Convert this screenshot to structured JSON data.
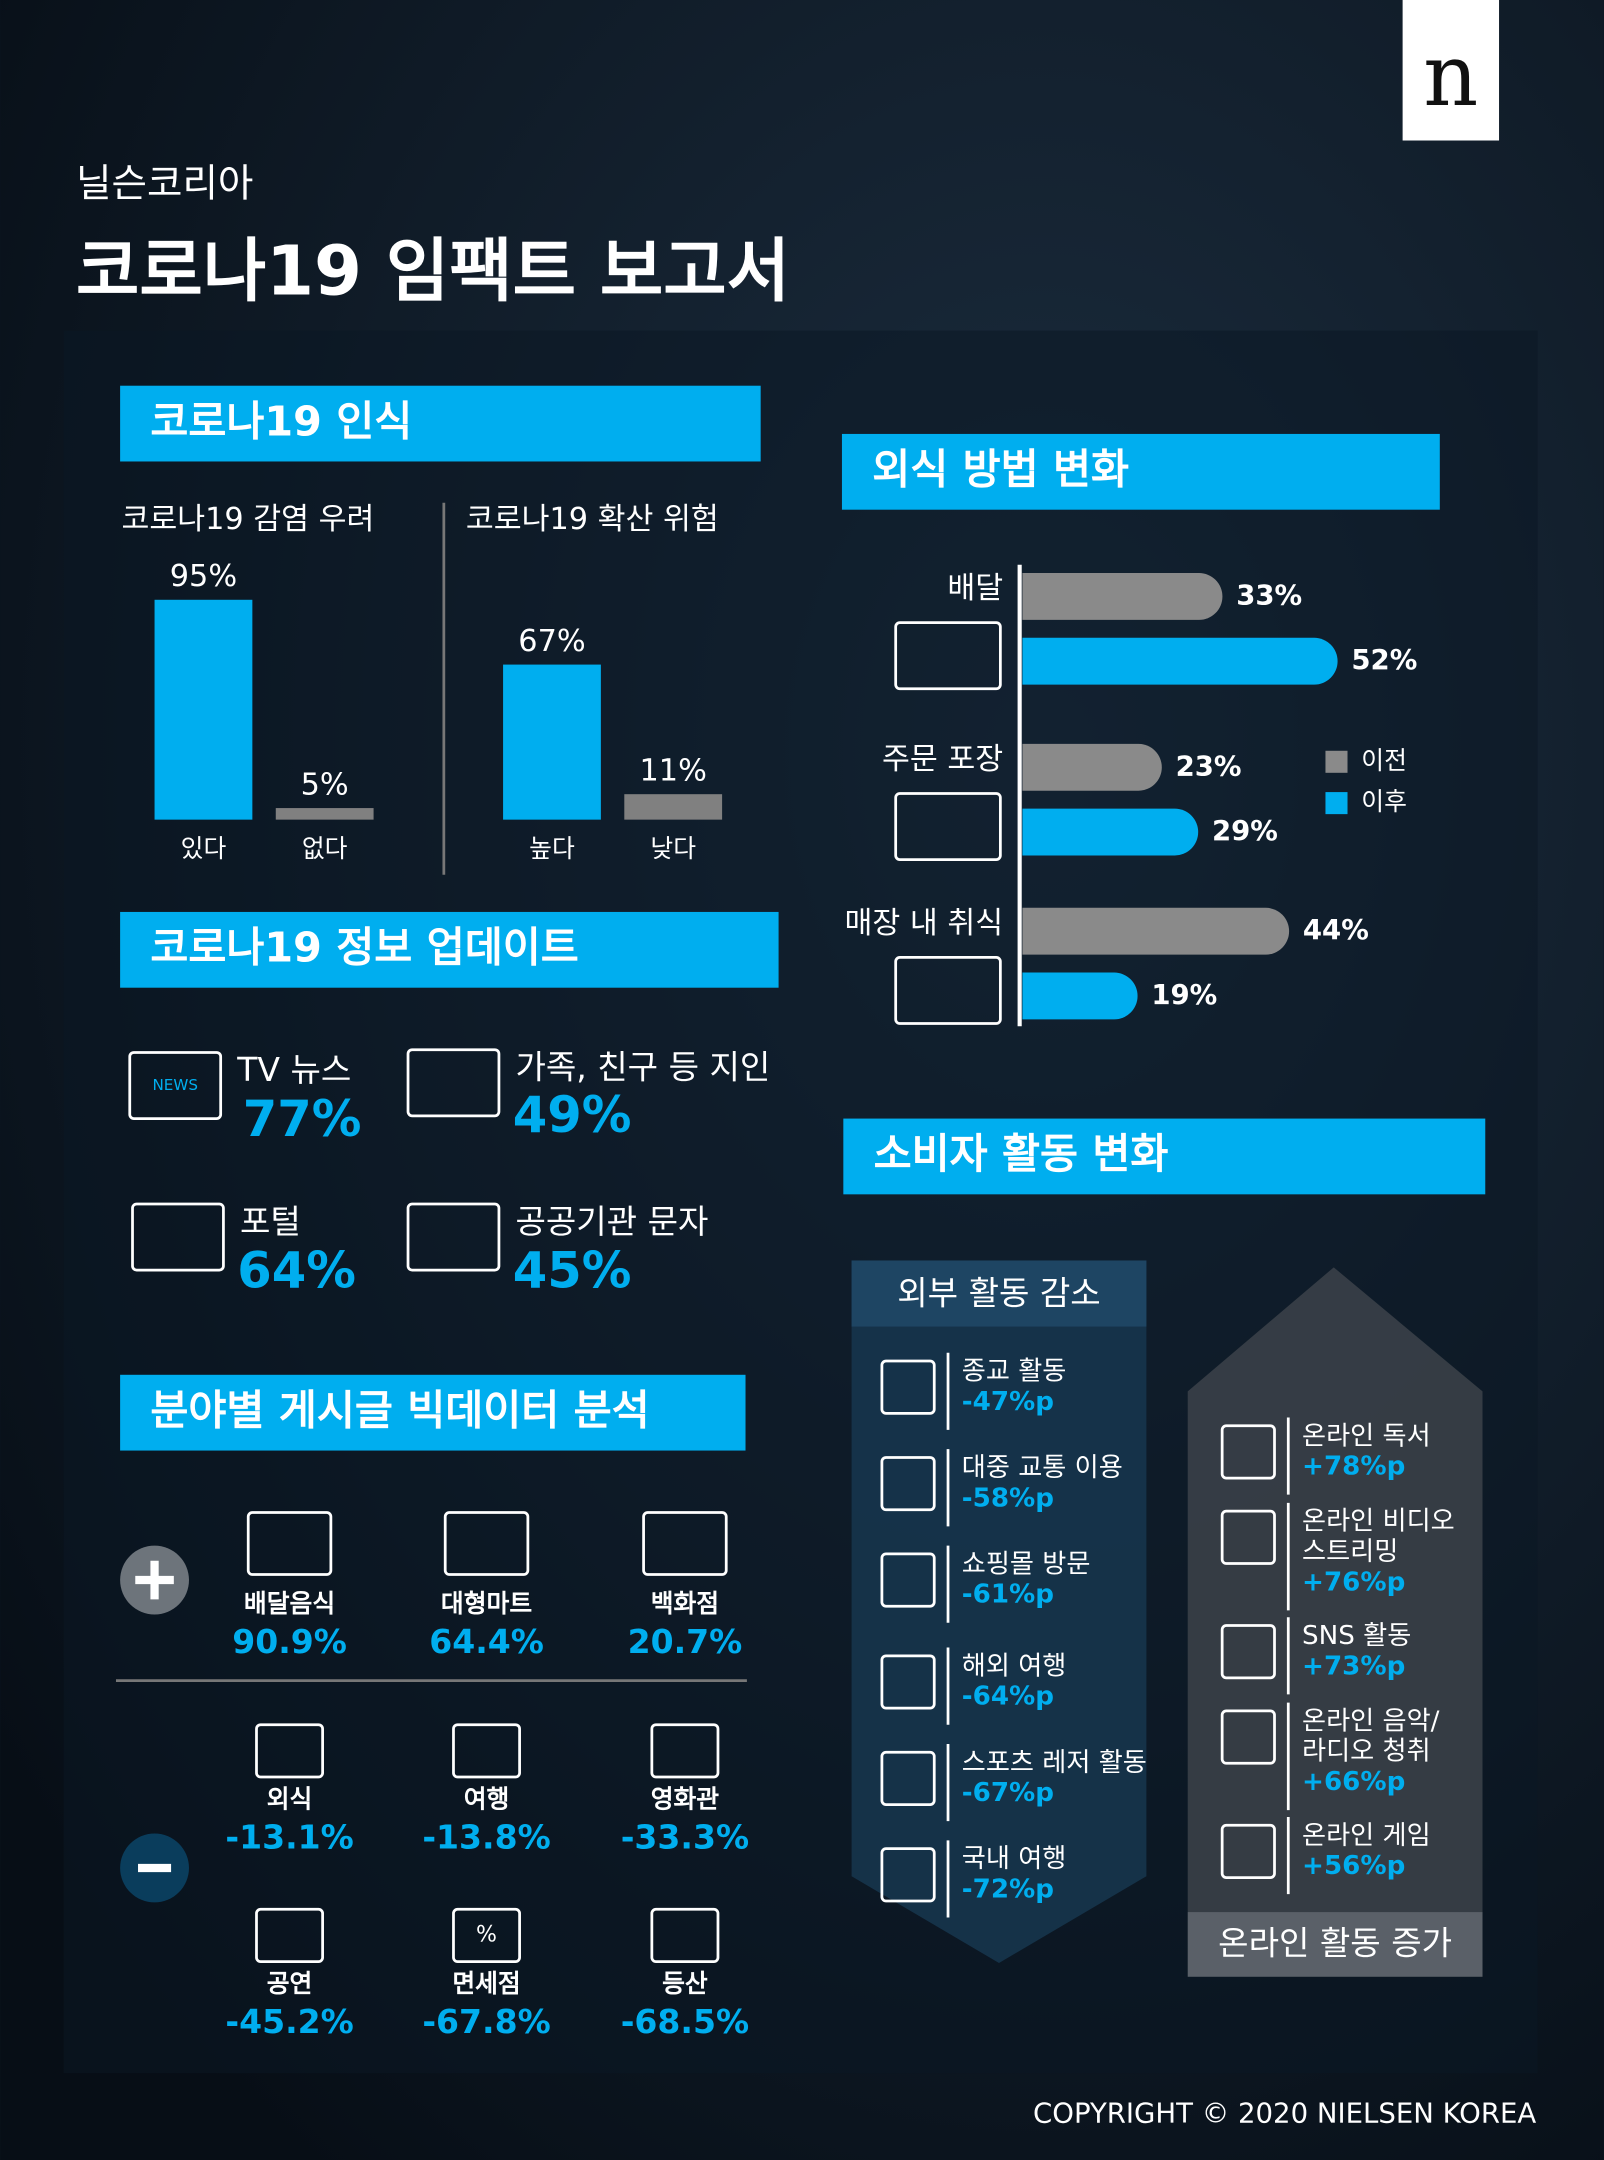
{
  "header": {
    "brand": "n",
    "subtitle": "닐슨코리아",
    "title": "코로나19 임팩트 보고서"
  },
  "awareness": {
    "title": "코로나19 인식",
    "charts": [
      {
        "title": "코로나19 감염 우려",
        "categories": [
          "있다",
          "없다"
        ],
        "values": [
          95,
          5
        ],
        "value_labels": [
          "95%",
          "5%"
        ],
        "colors": [
          "#00aeef",
          "#808080"
        ]
      },
      {
        "title": "코로나19 확산 위험",
        "categories": [
          "높다",
          "낮다"
        ],
        "values": [
          67,
          11
        ],
        "value_labels": [
          "67%",
          "11%"
        ],
        "colors": [
          "#00aeef",
          "#808080"
        ]
      }
    ]
  },
  "info": {
    "title": "코로나19 정보 업데이트",
    "items": [
      {
        "label": "TV 뉴스",
        "value": "77%",
        "icon_label": "NEWS"
      },
      {
        "label": "가족, 친구 등 지인",
        "value": "49%"
      },
      {
        "label": "포털",
        "value": "64%"
      },
      {
        "label": "공공기관 문자",
        "value": "45%"
      }
    ]
  },
  "bigdata": {
    "title": "분야별 게시글 빅데이터 분석",
    "plus": [
      {
        "label": "배달음식",
        "value": "90.9%"
      },
      {
        "label": "대형마트",
        "value": "64.4%"
      },
      {
        "label": "백화점",
        "value": "20.7%"
      }
    ],
    "minus": [
      {
        "label": "외식",
        "value": "-13.1%"
      },
      {
        "label": "여행",
        "value": "-13.8%"
      },
      {
        "label": "영화관",
        "value": "-33.3%"
      },
      {
        "label": "공연",
        "value": "-45.2%"
      },
      {
        "label": "면세점",
        "value": "-67.8%",
        "icon_label": "%"
      },
      {
        "label": "등산",
        "value": "-68.5%"
      }
    ]
  },
  "dining": {
    "title": "외식 방법 변화",
    "categories": [
      "배달",
      "주문 포장",
      "매장 내 취식"
    ],
    "series": [
      {
        "name": "이전",
        "color": "#8a8a8a",
        "values": [
          33,
          23,
          44
        ],
        "value_labels": [
          "33%",
          "23%",
          "44%"
        ]
      },
      {
        "name": "이후",
        "color": "#00aeef",
        "values": [
          52,
          29,
          19
        ],
        "value_labels": [
          "52%",
          "29%",
          "19%"
        ]
      }
    ]
  },
  "consumer": {
    "title": "소비자 활동 변화",
    "decrease": {
      "title": "외부 활동 감소",
      "items": [
        {
          "lines": [
            "종교 활동"
          ],
          "value": "-47%p"
        },
        {
          "lines": [
            "대중 교통 이용"
          ],
          "value": "-58%p"
        },
        {
          "lines": [
            "쇼핑몰 방문"
          ],
          "value": "-61%p"
        },
        {
          "lines": [
            "해외 여행"
          ],
          "value": "-64%p"
        },
        {
          "lines": [
            "스포츠 레저 활동"
          ],
          "value": "-67%p"
        },
        {
          "lines": [
            "국내 여행"
          ],
          "value": "-72%p"
        }
      ]
    },
    "increase": {
      "title": "온라인 활동 증가",
      "items": [
        {
          "lines": [
            "온라인 독서"
          ],
          "value": "+78%p"
        },
        {
          "lines": [
            "온라인 비디오",
            "스트리밍"
          ],
          "value": "+76%p"
        },
        {
          "lines": [
            "SNS 활동"
          ],
          "value": "+73%p"
        },
        {
          "lines": [
            "온라인 음악/",
            "라디오 청취"
          ],
          "value": "+66%p"
        },
        {
          "lines": [
            "온라인 게임"
          ],
          "value": "+56%p"
        }
      ]
    }
  },
  "footer": "COPYRIGHT © 2020 NIELSEN KOREA"
}
